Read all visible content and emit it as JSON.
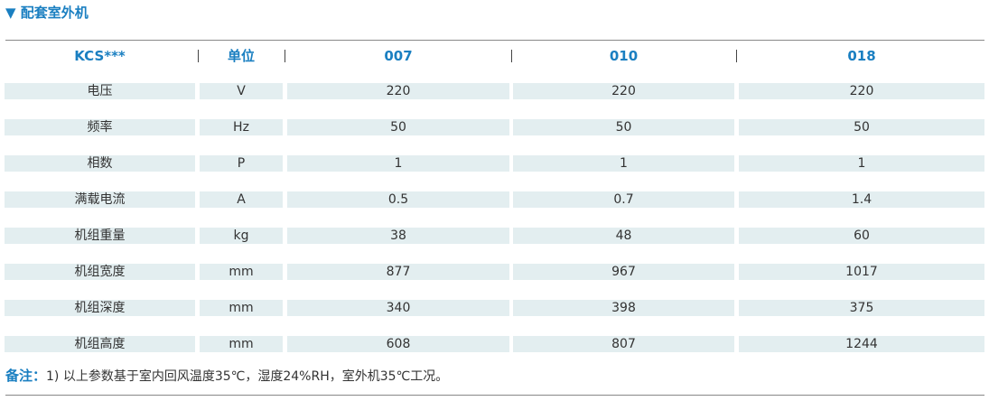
{
  "header": {
    "title": "配套室外机"
  },
  "table": {
    "columns": [
      "KCS***",
      "单位",
      "007",
      "010",
      "018"
    ],
    "rows": [
      [
        "电压",
        "V",
        220,
        220,
        220
      ],
      [
        "频率",
        "Hz",
        50,
        50,
        50
      ],
      [
        "相数",
        "P",
        1,
        1,
        1
      ],
      [
        "满载电流",
        "A",
        0.5,
        0.7,
        1.4
      ],
      [
        "机组重量",
        "kg",
        38,
        48,
        60
      ],
      [
        "机组宽度",
        "mm",
        877,
        967,
        1017
      ],
      [
        "机组深度",
        "mm",
        340,
        398,
        375
      ],
      [
        "机组高度",
        "mm",
        608,
        807,
        1244
      ]
    ]
  },
  "note": {
    "label": "备注：",
    "text": "1) 以上参数基于室内回风温度35℃，湿度24%RH，室外机35℃工况。"
  }
}
